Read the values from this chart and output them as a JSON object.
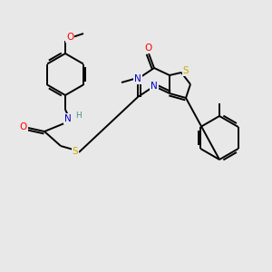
{
  "background_color": "#e8e8e8",
  "bond_color": "#000000",
  "atom_colors": {
    "N": "#0000cc",
    "O": "#ff0000",
    "S": "#ccaa00",
    "H": "#4a9090",
    "C": "#000000"
  }
}
